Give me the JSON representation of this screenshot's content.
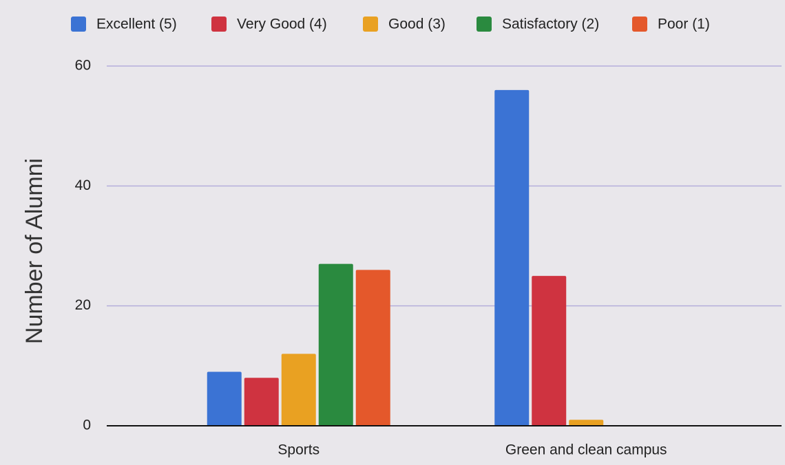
{
  "chart_data": {
    "type": "bar",
    "y_label": "Number of Alumni",
    "categories": [
      "Sports",
      "Green and clean campus"
    ],
    "series": [
      {
        "name": "Excellent (5)",
        "color": "#3b73d4",
        "values": [
          9,
          56
        ]
      },
      {
        "name": "Very Good (4)",
        "color": "#cf3340",
        "values": [
          8,
          25
        ]
      },
      {
        "name": "Good (3)",
        "color": "#e9a122",
        "values": [
          12,
          1
        ]
      },
      {
        "name": "Satisfactory (2)",
        "color": "#2a8a3f",
        "values": [
          27,
          0
        ]
      },
      {
        "name": "Poor (1)",
        "color": "#e4582b",
        "values": [
          26,
          0
        ]
      }
    ],
    "ylim": [
      0,
      60
    ],
    "yticks": [
      0,
      20,
      40,
      60
    ],
    "grid": true,
    "legend": "top"
  }
}
